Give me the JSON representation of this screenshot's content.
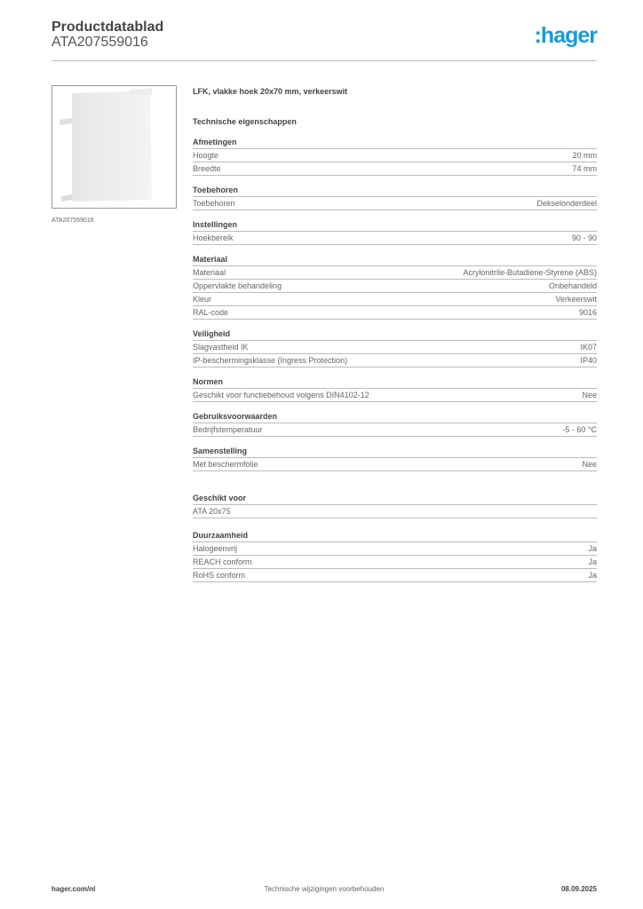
{
  "header": {
    "title": "Productdatablad",
    "article": "ATA207559016",
    "logo_text": ":hager",
    "brand_color": "#1a9ad6"
  },
  "image": {
    "caption": "ATA207559016"
  },
  "product": {
    "title": "LFK, vlakke hoek 20x70 mm, verkeerswit",
    "tech_heading": "Technische eigenschappen"
  },
  "sections": [
    {
      "title": "Afmetingen",
      "rows": [
        {
          "label": "Hoogte",
          "value": "20 mm"
        },
        {
          "label": "Breedte",
          "value": "74 mm"
        }
      ]
    },
    {
      "title": "Toebehoren",
      "rows": [
        {
          "label": "Toebehoren",
          "value": "Dekselonderdeel"
        }
      ]
    },
    {
      "title": "Instellingen",
      "rows": [
        {
          "label": "Hoekbereik",
          "value": "90 - 90"
        }
      ]
    },
    {
      "title": "Materiaal",
      "rows": [
        {
          "label": "Materiaal",
          "value": "Acrylonitrile-Butadiene-Styrene (ABS)"
        },
        {
          "label": "Oppervlakte behandeling",
          "value": "Onbehandeld"
        },
        {
          "label": "Kleur",
          "value": "Verkeerswit"
        },
        {
          "label": "RAL-code",
          "value": "9016"
        }
      ]
    },
    {
      "title": "Veiligheid",
      "rows": [
        {
          "label": "Slagvastheid IK",
          "value": "IK07"
        },
        {
          "label": "IP-beschermingsklasse (Ingress Protection)",
          "value": "IP40"
        }
      ]
    },
    {
      "title": "Normen",
      "rows": [
        {
          "label": "Geschikt voor functiebehoud volgens DIN4102-12",
          "value": "Nee"
        }
      ]
    },
    {
      "title": "Gebruiksvoorwaarden",
      "rows": [
        {
          "label": "Bedrijfstemperatuur",
          "value": "-5 - 60 °C"
        }
      ]
    },
    {
      "title": "Samenstelling",
      "rows": [
        {
          "label": "Met beschermfolie",
          "value": "Nee"
        }
      ]
    },
    {
      "title": "Geschikt voor",
      "rows": [
        {
          "label": "ATA 20x75",
          "value": ""
        }
      ]
    },
    {
      "title": "Duurzaamheid",
      "rows": [
        {
          "label": "Halogeenvrij",
          "value": "Ja"
        },
        {
          "label": "REACH conform",
          "value": "Ja"
        },
        {
          "label": "RoHS conform",
          "value": "Ja"
        }
      ]
    }
  ],
  "footer": {
    "website": "hager.com/nl",
    "notice": "Technische wijzigingen voorbehouden",
    "date": "08.09.2025"
  }
}
